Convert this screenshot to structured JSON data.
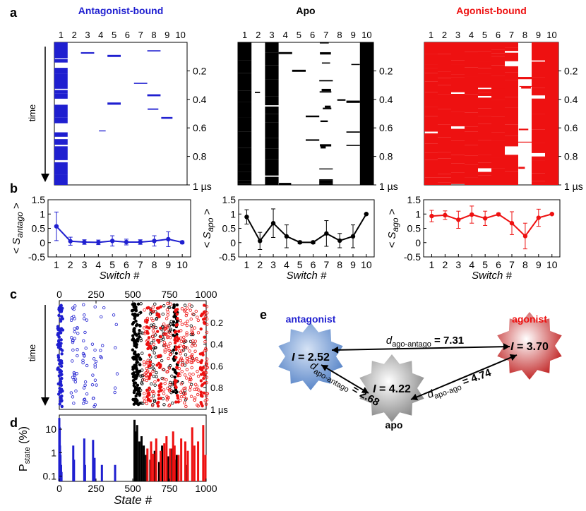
{
  "panel_letters": [
    "a",
    "b",
    "c",
    "d",
    "e"
  ],
  "colors": {
    "antagonist": "#1f1fd0",
    "apo": "#000000",
    "agonist": "#ee1111"
  },
  "chart_data": [
    {
      "panel": "a",
      "type": "heatmap",
      "panels": [
        {
          "title": "Antagonist-bound",
          "color": "antagonist",
          "columns": [
            "1",
            "2",
            "3",
            "4",
            "5",
            "6",
            "7",
            "8",
            "9",
            "10"
          ],
          "y_ticks": [
            "0.2",
            "0.4",
            "0.6",
            "0.8",
            "1 µs"
          ],
          "occupancy": [
            0.55,
            0.03,
            0.02,
            0.01,
            0.05,
            0.02,
            0.01,
            0.05,
            0.12,
            0.01
          ]
        },
        {
          "title": "Apo",
          "color": "apo",
          "columns": [
            "1",
            "2",
            "3",
            "4",
            "5",
            "6",
            "7",
            "8",
            "9",
            "10"
          ],
          "y_ticks": [
            "0.2",
            "0.4",
            "0.6",
            "0.8",
            "1 µs"
          ],
          "occupancy": [
            0.9,
            0.07,
            0.68,
            0.22,
            0.02,
            0.01,
            0.32,
            0.1,
            0.22,
            1.0
          ]
        },
        {
          "title": "Agonist-bound",
          "color": "agonist",
          "columns": [
            "1",
            "2",
            "3",
            "4",
            "5",
            "6",
            "7",
            "8",
            "9",
            "10"
          ],
          "y_ticks": [
            "0.2",
            "0.4",
            "0.6",
            "0.8",
            "1 µs"
          ],
          "occupancy": [
            0.93,
            0.96,
            0.8,
            0.98,
            0.85,
            0.99,
            0.68,
            0.23,
            0.87,
            1.0
          ]
        }
      ],
      "time_label": "time"
    },
    {
      "panel": "b",
      "type": "line",
      "xlabel": "Switch #",
      "x": [
        1,
        2,
        3,
        4,
        5,
        6,
        7,
        8,
        9,
        10
      ],
      "yticks": [
        "-0.5",
        "0",
        "0.5",
        "1",
        "1.5"
      ],
      "ylim": [
        -0.5,
        1.5
      ],
      "series": [
        {
          "ylabel_main": "< S",
          "ylabel_sub": "antago",
          "ylabel_end": " >",
          "color": "antagonist",
          "values": [
            0.57,
            0.05,
            0.02,
            0.01,
            0.06,
            0.02,
            0.02,
            0.06,
            0.12,
            0.01
          ],
          "errors": [
            0.5,
            0.14,
            0.08,
            0.08,
            0.18,
            0.1,
            0.08,
            0.18,
            0.26,
            0.05
          ]
        },
        {
          "ylabel_main": "< S",
          "ylabel_sub": "apo",
          "ylabel_end": " >",
          "color": "apo",
          "values": [
            0.9,
            0.06,
            0.68,
            0.22,
            0.01,
            0.01,
            0.32,
            0.07,
            0.22,
            1.0
          ],
          "errors": [
            0.25,
            0.3,
            0.5,
            0.4,
            0.05,
            0.05,
            0.45,
            0.25,
            0.4,
            0.02
          ]
        },
        {
          "ylabel_main": "< S",
          "ylabel_sub": "ago",
          "ylabel_end": " >",
          "color": "agonist",
          "values": [
            0.93,
            0.96,
            0.8,
            0.98,
            0.85,
            0.99,
            0.68,
            0.23,
            0.87,
            1.0
          ],
          "errors": [
            0.2,
            0.15,
            0.3,
            0.3,
            0.25,
            0.04,
            0.4,
            0.45,
            0.3,
            0.02
          ]
        }
      ]
    },
    {
      "panel": "c",
      "type": "scatter",
      "x_ticks": [
        "0",
        "250",
        "500",
        "750",
        "1000"
      ],
      "xlim": [
        0,
        1000
      ],
      "y_ticks": [
        "0.2",
        "0.4",
        "0.6",
        "0.8",
        "1 µs"
      ],
      "time_label": "time"
    },
    {
      "panel": "d",
      "type": "bar",
      "xlabel": "State #",
      "ylabel_main": "P",
      "ylabel_sub": "state",
      "ylabel_unit": "(%)",
      "x_ticks": [
        "0",
        "250",
        "500",
        "750",
        "1000"
      ],
      "y_ticks": [
        "0.1",
        "1",
        "10"
      ],
      "xlim": [
        0,
        1000
      ],
      "ylim_log": [
        0.06,
        40
      ],
      "series": [
        {
          "color": "antagonist",
          "x": [
            0,
            3,
            5,
            8,
            12,
            15,
            95,
            100,
            170,
            175,
            230,
            240,
            290,
            380
          ],
          "values": [
            30,
            12,
            2,
            0.8,
            0.3,
            0.15,
            2,
            0.5,
            4,
            0.3,
            3.5,
            0.6,
            0.3,
            0.3
          ]
        },
        {
          "color": "apo",
          "x": [
            512,
            520,
            530,
            545,
            560,
            575,
            590,
            620,
            650,
            680,
            700,
            740,
            770,
            790,
            800,
            860
          ],
          "values": [
            25,
            8,
            15,
            3,
            5,
            2,
            0.8,
            0.5,
            1.2,
            0.4,
            2,
            0.7,
            1.5,
            0.5,
            0.8,
            0.3
          ]
        },
        {
          "color": "agonist",
          "x": [
            600,
            625,
            640,
            660,
            690,
            715,
            730,
            755,
            775,
            785,
            812,
            830,
            858,
            875,
            905,
            920,
            945,
            980,
            995
          ],
          "values": [
            1.5,
            3,
            0.9,
            4,
            1.2,
            2.5,
            5,
            1.5,
            8,
            2,
            0.8,
            4,
            3,
            1.2,
            12,
            2,
            3,
            15,
            0.8
          ]
        }
      ]
    }
  ],
  "network": {
    "nodes": [
      {
        "id": "antagonist",
        "label": "antagonist",
        "info_main": "I",
        "info_value": " = 2.52",
        "color": "antagonist"
      },
      {
        "id": "apo",
        "label": "apo",
        "info_main": "I",
        "info_value": " = 4.22",
        "color": "apo"
      },
      {
        "id": "agonist",
        "label": "agonist",
        "info_main": "I",
        "info_value": " = 3.70",
        "color": "agonist"
      }
    ],
    "edges": [
      {
        "from": "agonist",
        "to": "antagonist",
        "sym": "d",
        "sub": "ago-antago",
        "value": " = 7.31"
      },
      {
        "from": "apo",
        "to": "antagonist",
        "sym": "d",
        "sub": "apo-antago",
        "value": " = 2.68"
      },
      {
        "from": "apo",
        "to": "agonist",
        "sym": "d",
        "sub": "apo-ago",
        "value": " = 4.74"
      }
    ]
  }
}
